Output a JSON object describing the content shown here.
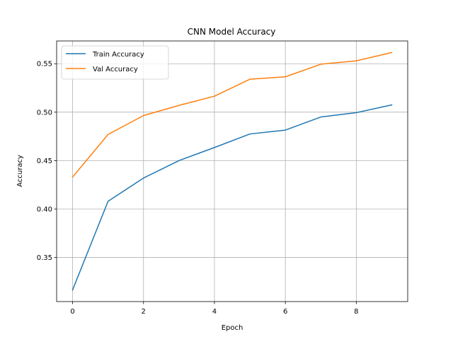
{
  "chart_data": {
    "type": "line",
    "title": "CNN Model Accuracy",
    "xlabel": "Epoch",
    "ylabel": "Accuracy",
    "x": [
      0,
      1,
      2,
      3,
      4,
      5,
      6,
      7,
      8,
      9
    ],
    "xlim": [
      -0.45,
      9.45
    ],
    "ylim": [
      0.3045,
      0.5735
    ],
    "xticks": [
      0,
      2,
      4,
      6,
      8
    ],
    "yticks": [
      0.35,
      0.4,
      0.45,
      0.5,
      0.55
    ],
    "xtick_labels": [
      "0",
      "2",
      "4",
      "6",
      "8"
    ],
    "ytick_labels": [
      "0.35",
      "0.40",
      "0.45",
      "0.50",
      "0.55"
    ],
    "grid": true,
    "legend_position": "top-left",
    "series": [
      {
        "name": "Train Accuracy",
        "color": "#1f77b4",
        "values": [
          0.3165,
          0.408,
          0.432,
          0.45,
          0.4635,
          0.4775,
          0.4815,
          0.495,
          0.4995,
          0.5075
        ]
      },
      {
        "name": "Val Accuracy",
        "color": "#ff7f0e",
        "values": [
          0.433,
          0.477,
          0.4965,
          0.507,
          0.5165,
          0.534,
          0.5365,
          0.5495,
          0.553,
          0.5615
        ]
      }
    ]
  }
}
